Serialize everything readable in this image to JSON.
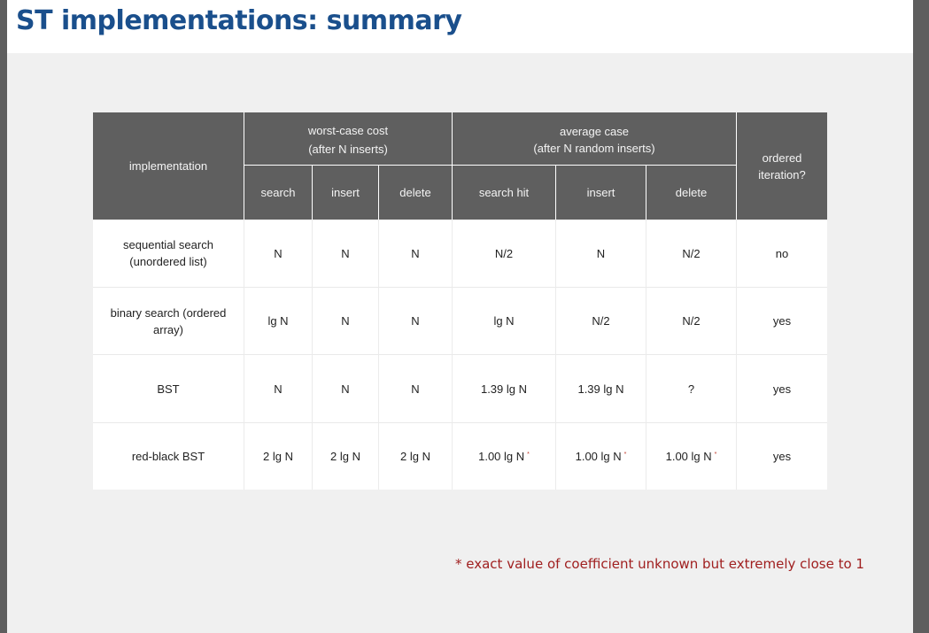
{
  "title": "ST implementations:  summary",
  "table": {
    "header": {
      "implementation": "implementation",
      "worst_case_line1": "worst-case cost",
      "worst_case_line2": "(after N inserts)",
      "average_case_line1": "average case",
      "average_case_line2": "(after N random inserts)",
      "ordered_line1": "ordered",
      "ordered_line2": "iteration?",
      "sub": [
        "search",
        "insert",
        "delete",
        "search hit",
        "insert",
        "delete"
      ]
    },
    "rows": [
      {
        "impl_line1": "sequential search",
        "impl_line2": "(unordered list)",
        "cells": [
          "N",
          "N",
          "N",
          "N/2",
          "N",
          "N/2"
        ],
        "ordered": "no",
        "starred": [
          false,
          false,
          false,
          false,
          false,
          false
        ]
      },
      {
        "impl_line1": "binary search (ordered",
        "impl_line2": "array)",
        "cells": [
          "lg N",
          "N",
          "N",
          "lg N",
          "N/2",
          "N/2"
        ],
        "ordered": "yes",
        "starred": [
          false,
          false,
          false,
          false,
          false,
          false
        ]
      },
      {
        "impl_line1": "BST",
        "impl_line2": "",
        "cells": [
          "N",
          "N",
          "N",
          "1.39 lg N",
          "1.39 lg N",
          "?"
        ],
        "ordered": "yes",
        "starred": [
          false,
          false,
          false,
          false,
          false,
          false
        ]
      },
      {
        "impl_line1": "red-black BST",
        "impl_line2": "",
        "cells": [
          "2 lg N",
          "2 lg N",
          "2 lg N",
          "1.00 lg N",
          "1.00 lg N",
          "1.00 lg N"
        ],
        "ordered": "yes",
        "starred": [
          false,
          false,
          false,
          true,
          true,
          true
        ]
      }
    ],
    "star": "*"
  },
  "footnote": "* exact value of coefficient unknown but extremely close to 1",
  "colors": {
    "title": "#1a4f8c",
    "header_bg": "#5f5f5f",
    "footnote": "#a02020",
    "star": "#c0392b",
    "slide_bg": "#f0f0f0",
    "frame": "#5e5e5e"
  }
}
